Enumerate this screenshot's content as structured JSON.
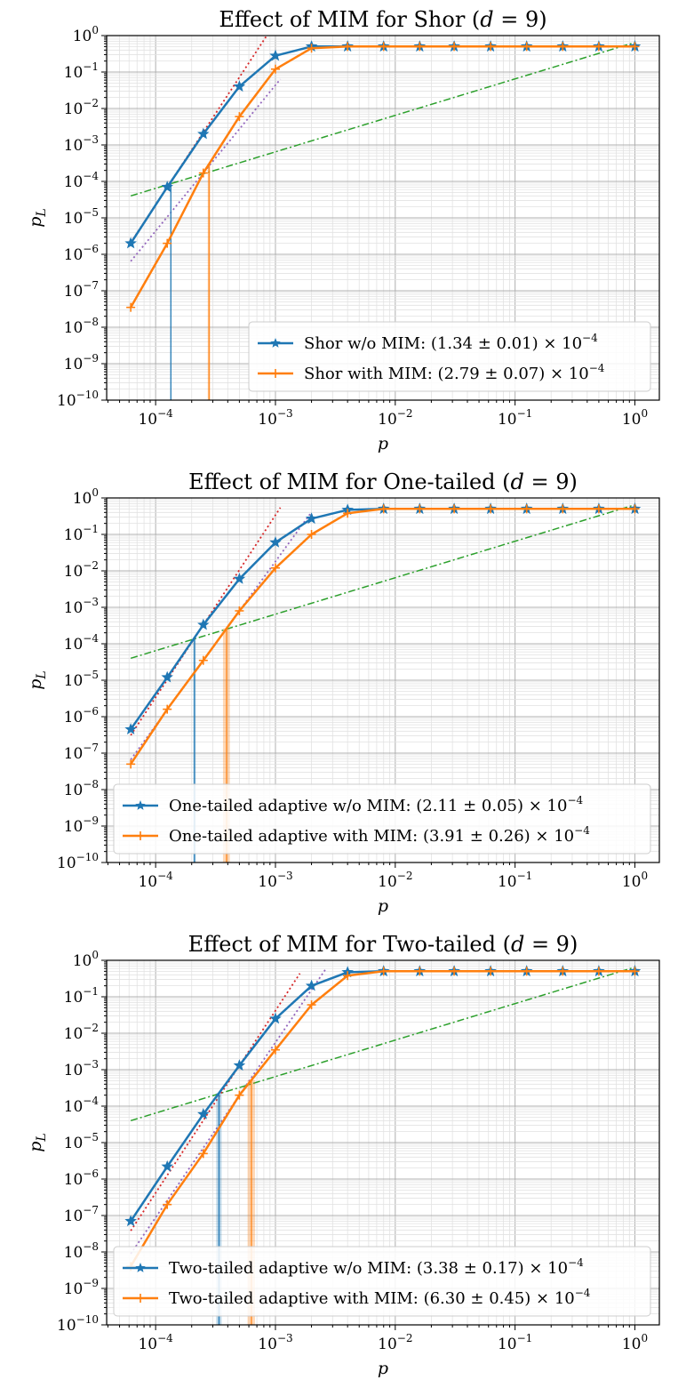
{
  "colors": {
    "without": "#1f77b4",
    "with": "#ff7f0e",
    "fit_without": "#d62728",
    "fit_with": "#9467bd",
    "reference": "#2ca02c"
  },
  "chart_data": [
    {
      "type": "line",
      "title": "Effect of MIM for Shor (d = 9)",
      "xlabel": "p",
      "ylabel": "p_L",
      "xscale": "log",
      "yscale": "log",
      "xlim": [
        3.9e-05,
        1.6
      ],
      "ylim": [
        1e-10,
        1
      ],
      "x_tick_labels": [
        "10^-4",
        "10^-3",
        "10^-2",
        "10^-1",
        "10^0"
      ],
      "y_tick_labels": [
        "10^-10",
        "10^-9",
        "10^-8",
        "10^-7",
        "10^-6",
        "10^-5",
        "10^-4",
        "10^-3",
        "10^-2",
        "10^-1",
        "10^0"
      ],
      "legend_position": "lower-right",
      "reference_line": {
        "style": "dash-dot",
        "p_start": 6.2e-05,
        "pl_start": 4e-05,
        "p_end": 1.0,
        "pl_end": 0.65
      },
      "series": [
        {
          "name": "Shor w/o MIM: (1.34 ± 0.01) × 10^-4",
          "label_main": "Shor w/o MIM: (1.34 ± 0.01) × 10",
          "label_exp": "−4",
          "marker": "star",
          "x": [
            6.2e-05,
            0.000125,
            0.00025,
            0.0005,
            0.001,
            0.002,
            0.004,
            0.008,
            0.016,
            0.031,
            0.0625,
            0.125,
            0.25,
            0.5,
            1.0
          ],
          "y": [
            2e-06,
            7e-05,
            0.002,
            0.04,
            0.28,
            0.5,
            0.5,
            0.5,
            0.5,
            0.5,
            0.5,
            0.5,
            0.5,
            0.5,
            0.5
          ],
          "threshold": 0.000134,
          "threshold_err": 1e-06,
          "fit": {
            "slope": 5,
            "anchor_x": 0.000125,
            "anchor_y": 7e-05,
            "x_from": 6.2e-05,
            "x_to": 0.00085
          }
        },
        {
          "name": "Shor with MIM: (2.79 ± 0.07) × 10^-4",
          "label_main": "Shor with MIM: (2.79 ± 0.07) × 10",
          "label_exp": "−4",
          "marker": "plus",
          "x": [
            6.2e-05,
            0.000125,
            0.00025,
            0.0005,
            0.001,
            0.002,
            0.004,
            0.008,
            0.016,
            0.031,
            0.0625,
            0.125,
            0.25,
            0.5,
            1.0
          ],
          "y": [
            3.5e-08,
            2e-06,
            0.00017,
            0.006,
            0.12,
            0.45,
            0.5,
            0.5,
            0.5,
            0.5,
            0.5,
            0.5,
            0.5,
            0.5,
            0.5
          ],
          "threshold": 0.000279,
          "threshold_err": 7e-06,
          "fit": {
            "slope": 4,
            "anchor_x": 0.00025,
            "anchor_y": 0.00017,
            "x_from": 6.2e-05,
            "x_to": 0.0011
          }
        }
      ]
    },
    {
      "type": "line",
      "title": "Effect of MIM for One-tailed (d = 9)",
      "xlabel": "p",
      "ylabel": "p_L",
      "xscale": "log",
      "yscale": "log",
      "xlim": [
        3.9e-05,
        1.6
      ],
      "ylim": [
        1e-10,
        1
      ],
      "x_tick_labels": [
        "10^-4",
        "10^-3",
        "10^-2",
        "10^-1",
        "10^0"
      ],
      "y_tick_labels": [
        "10^-10",
        "10^-9",
        "10^-8",
        "10^-7",
        "10^-6",
        "10^-5",
        "10^-4",
        "10^-3",
        "10^-2",
        "10^-1",
        "10^0"
      ],
      "legend_position": "lower-right",
      "reference_line": {
        "style": "dash-dot",
        "p_start": 6.2e-05,
        "pl_start": 4e-05,
        "p_end": 1.0,
        "pl_end": 0.65
      },
      "series": [
        {
          "name": "One-tailed adaptive w/o MIM: (2.11 ± 0.05) × 10^-4",
          "label_main": "One-tailed adaptive w/o MIM: (2.11 ± 0.05) × 10",
          "label_exp": "−4",
          "marker": "star",
          "x": [
            6.2e-05,
            0.000125,
            0.00025,
            0.0005,
            0.001,
            0.002,
            0.004,
            0.008,
            0.016,
            0.031,
            0.0625,
            0.125,
            0.25,
            0.5,
            1.0
          ],
          "y": [
            4.5e-07,
            1.2e-05,
            0.00033,
            0.006,
            0.06,
            0.27,
            0.47,
            0.5,
            0.5,
            0.5,
            0.5,
            0.5,
            0.5,
            0.5,
            0.5
          ],
          "threshold": 0.000211,
          "threshold_err": 5e-06,
          "fit": {
            "slope": 5,
            "anchor_x": 0.00025,
            "anchor_y": 0.00033,
            "x_from": 6.2e-05,
            "x_to": 0.0011
          }
        },
        {
          "name": "One-tailed adaptive with MIM: (3.91 ± 0.26) × 10^-4",
          "label_main": "One-tailed adaptive with MIM: (3.91 ± 0.26) × 10",
          "label_exp": "−4",
          "marker": "plus",
          "x": [
            6.2e-05,
            0.000125,
            0.00025,
            0.0005,
            0.001,
            0.002,
            0.004,
            0.008,
            0.016,
            0.031,
            0.0625,
            0.125,
            0.25,
            0.5,
            1.0
          ],
          "y": [
            5e-08,
            1.6e-06,
            3.5e-05,
            0.0008,
            0.012,
            0.1,
            0.38,
            0.5,
            0.5,
            0.5,
            0.5,
            0.5,
            0.5,
            0.5,
            0.5
          ],
          "threshold": 0.000391,
          "threshold_err": 2.6e-05,
          "fit": {
            "slope": 4.5,
            "anchor_x": 0.0005,
            "anchor_y": 0.0008,
            "x_from": 6.2e-05,
            "x_to": 0.002
          }
        }
      ]
    },
    {
      "type": "line",
      "title": "Effect of MIM for Two-tailed (d = 9)",
      "xlabel": "p",
      "ylabel": "p_L",
      "xscale": "log",
      "yscale": "log",
      "xlim": [
        3.9e-05,
        1.6
      ],
      "ylim": [
        1e-10,
        1
      ],
      "x_tick_labels": [
        "10^-4",
        "10^-3",
        "10^-2",
        "10^-1",
        "10^0"
      ],
      "y_tick_labels": [
        "10^-10",
        "10^-9",
        "10^-8",
        "10^-7",
        "10^-6",
        "10^-5",
        "10^-4",
        "10^-3",
        "10^-2",
        "10^-1",
        "10^0"
      ],
      "legend_position": "lower-right",
      "reference_line": {
        "style": "dash-dot",
        "p_start": 6.2e-05,
        "pl_start": 4e-05,
        "p_end": 1.0,
        "pl_end": 0.65
      },
      "series": [
        {
          "name": "Two-tailed adaptive w/o MIM: (3.38 ± 0.17) × 10^-4",
          "label_main": "Two-tailed adaptive w/o MIM: (3.38 ± 0.17) × 10",
          "label_exp": "−4",
          "marker": "star",
          "x": [
            6.2e-05,
            0.000125,
            0.00025,
            0.0005,
            0.001,
            0.002,
            0.004,
            0.008,
            0.016,
            0.031,
            0.0625,
            0.125,
            0.25,
            0.5,
            1.0
          ],
          "y": [
            7e-08,
            2.2e-06,
            6e-05,
            0.0013,
            0.025,
            0.2,
            0.47,
            0.5,
            0.5,
            0.5,
            0.5,
            0.5,
            0.5,
            0.5,
            0.5
          ],
          "threshold": 0.000338,
          "threshold_err": 1.7e-05,
          "fit": {
            "slope": 5,
            "anchor_x": 0.0005,
            "anchor_y": 0.0013,
            "x_from": 6.2e-05,
            "x_to": 0.0016
          }
        },
        {
          "name": "Two-tailed adaptive with MIM: (6.30 ± 0.45) × 10^-4",
          "label_main": "Two-tailed adaptive with MIM: (6.30 ± 0.45) × 10",
          "label_exp": "−4",
          "marker": "plus",
          "x": [
            6.2e-05,
            0.000125,
            0.00025,
            0.0005,
            0.001,
            0.002,
            0.004,
            0.008,
            0.016,
            0.031,
            0.0625,
            0.125,
            0.25,
            0.5,
            1.0
          ],
          "y": [
            4e-09,
            2e-07,
            5e-06,
            0.0002,
            0.0035,
            0.06,
            0.38,
            0.5,
            0.5,
            0.5,
            0.5,
            0.5,
            0.5,
            0.5,
            0.5
          ],
          "threshold": 0.00063,
          "threshold_err": 4.5e-05,
          "fit": {
            "slope": 4.8,
            "anchor_x": 0.0005,
            "anchor_y": 0.0002,
            "x_from": 6.2e-05,
            "x_to": 0.0026
          }
        }
      ]
    }
  ]
}
